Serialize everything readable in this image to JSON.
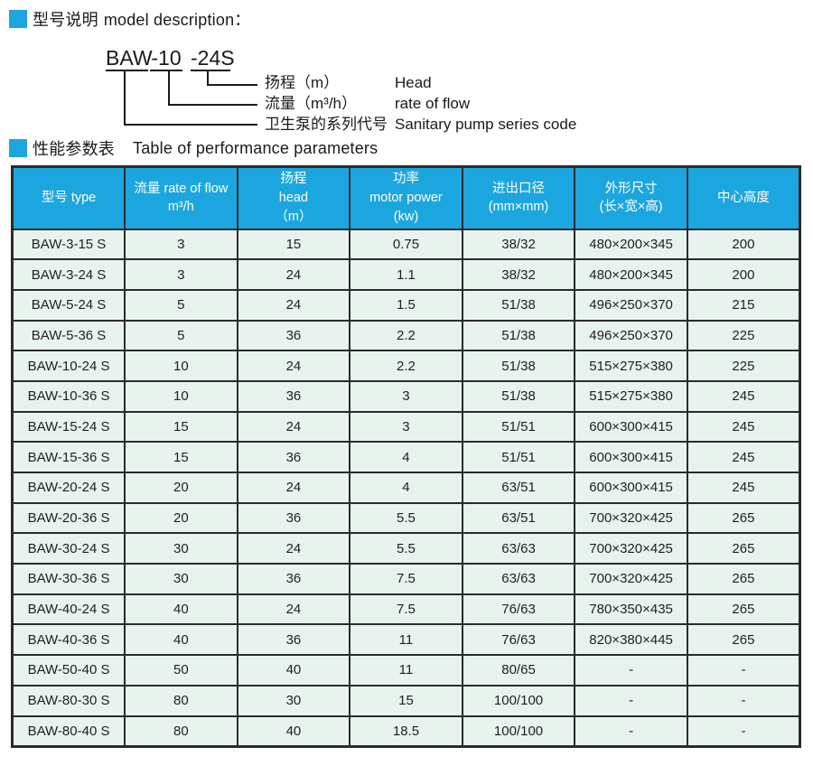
{
  "colors": {
    "accent_blue": "#1ca6e0",
    "row_mint": "#e8f3ee",
    "border_dark": "#2b2b2b"
  },
  "section_model": {
    "bullet": "blue-square",
    "title_zh": "型号说明",
    "title_en": "model description：",
    "code": [
      "BAW",
      "-10",
      "-24S"
    ],
    "legend": [
      {
        "zh": "扬程（m）",
        "en": "Head"
      },
      {
        "zh": "流量（m³/h）",
        "en": "rate of flow"
      },
      {
        "zh": "卫生泵的系列代号",
        "en": "Sanitary pump series code"
      }
    ]
  },
  "section_table": {
    "bullet": "blue-square",
    "title_zh": "性能参数表",
    "title_en": "Table of performance parameters",
    "table": {
      "headers": [
        {
          "lines": [
            "型号 type"
          ]
        },
        {
          "lines": [
            "流量 rate of flow",
            "m³/h"
          ]
        },
        {
          "lines": [
            "扬程",
            "head",
            "（m）"
          ]
        },
        {
          "lines": [
            "功率",
            "motor power",
            "(kw)"
          ]
        },
        {
          "lines": [
            "进出口径",
            "(mm×mm)"
          ]
        },
        {
          "lines": [
            "外形尺寸",
            "(长×宽×高)"
          ]
        },
        {
          "lines": [
            "中心高度"
          ]
        }
      ],
      "rows": [
        [
          "BAW-3-15 S",
          "3",
          "15",
          "0.75",
          "38/32",
          "480×200×345",
          "200"
        ],
        [
          "BAW-3-24 S",
          "3",
          "24",
          "1.1",
          "38/32",
          "480×200×345",
          "200"
        ],
        [
          "BAW-5-24 S",
          "5",
          "24",
          "1.5",
          "51/38",
          "496×250×370",
          "215"
        ],
        [
          "BAW-5-36 S",
          "5",
          "36",
          "2.2",
          "51/38",
          "496×250×370",
          "225"
        ],
        [
          "BAW-10-24 S",
          "10",
          "24",
          "2.2",
          "51/38",
          "515×275×380",
          "225"
        ],
        [
          "BAW-10-36 S",
          "10",
          "36",
          "3",
          "51/38",
          "515×275×380",
          "245"
        ],
        [
          "BAW-15-24 S",
          "15",
          "24",
          "3",
          "51/51",
          "600×300×415",
          "245"
        ],
        [
          "BAW-15-36 S",
          "15",
          "36",
          "4",
          "51/51",
          "600×300×415",
          "245"
        ],
        [
          "BAW-20-24 S",
          "20",
          "24",
          "4",
          "63/51",
          "600×300×415",
          "245"
        ],
        [
          "BAW-20-36 S",
          "20",
          "36",
          "5.5",
          "63/51",
          "700×320×425",
          "265"
        ],
        [
          "BAW-30-24 S",
          "30",
          "24",
          "5.5",
          "63/63",
          "700×320×425",
          "265"
        ],
        [
          "BAW-30-36 S",
          "30",
          "36",
          "7.5",
          "63/63",
          "700×320×425",
          "265"
        ],
        [
          "BAW-40-24 S",
          "40",
          "24",
          "7.5",
          "76/63",
          "780×350×435",
          "265"
        ],
        [
          "BAW-40-36 S",
          "40",
          "36",
          "11",
          "76/63",
          "820×380×445",
          "265"
        ],
        [
          "BAW-50-40 S",
          "50",
          "40",
          "11",
          "80/65",
          "-",
          "-"
        ],
        [
          "BAW-80-30 S",
          "80",
          "30",
          "15",
          "100/100",
          "-",
          "-"
        ],
        [
          "BAW-80-40 S",
          "80",
          "40",
          "18.5",
          "100/100",
          "-",
          "-"
        ]
      ]
    }
  }
}
